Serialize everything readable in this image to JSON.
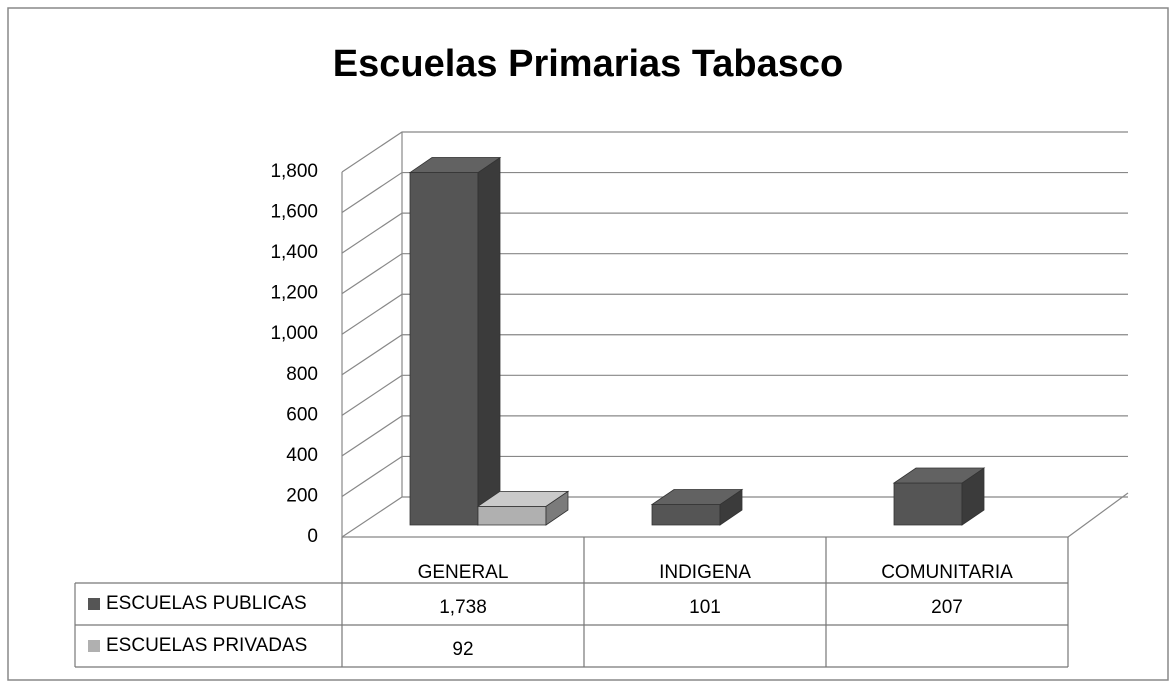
{
  "chart_data": {
    "type": "bar3d",
    "title": "Escuelas Primarias Tabasco",
    "categories": [
      "GENERAL",
      "INDIGENA",
      "COMUNITARIA"
    ],
    "series": [
      {
        "name": "ESCUELAS PUBLICAS",
        "color": "#555555",
        "values": [
          1738,
          101,
          207
        ],
        "value_labels": [
          "1,738",
          "101",
          "207"
        ]
      },
      {
        "name": "ESCUELAS PRIVADAS",
        "color": "#b0b0b0",
        "values": [
          92,
          null,
          null
        ],
        "value_labels": [
          "92",
          null,
          null
        ]
      }
    ],
    "ylim": [
      0,
      1800
    ],
    "yticks": [
      0,
      200,
      400,
      600,
      800,
      {
        "value": 1000,
        "label": "1,000"
      },
      {
        "value": 1200,
        "label": "1,200"
      },
      {
        "value": 1400,
        "label": "1,400"
      },
      {
        "value": 1600,
        "label": "1,600"
      },
      {
        "value": 1800,
        "label": "1,800"
      }
    ],
    "grid": true,
    "data_table": true
  }
}
